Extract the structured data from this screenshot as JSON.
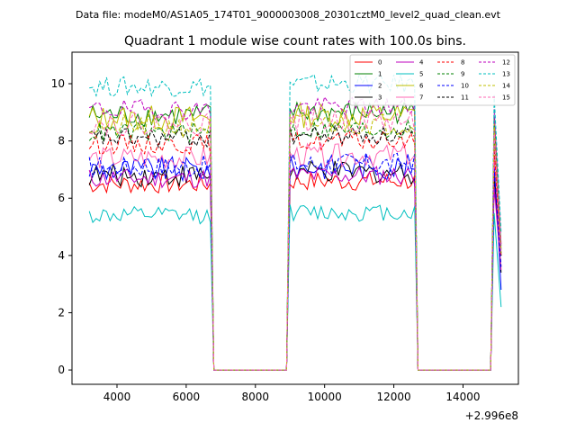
{
  "suptitle": "Data file: modeM0/AS1A05_174T01_9000003008_20301cztM0_level2_quad_clean.evt",
  "chart_data": {
    "type": "line",
    "title": "Quadrant 1 module wise count rates with 100.0s bins.",
    "xlabel": "",
    "ylabel": "",
    "x_offset_label": "+2.996e8",
    "xlim": [
      2700,
      15600
    ],
    "ylim": [
      -0.5,
      11.1
    ],
    "xticks": [
      4000,
      6000,
      8000,
      10000,
      12000,
      14000
    ],
    "yticks": [
      0,
      2,
      4,
      6,
      8,
      10
    ],
    "segments": [
      [
        3200,
        6700
      ],
      [
        9000,
        12600
      ],
      [
        14900,
        15100
      ]
    ],
    "gap_edges": [
      [
        6800,
        8900
      ],
      [
        12700,
        14800
      ]
    ],
    "x_step": 100,
    "legend_location": "upper-right",
    "legend_columns": 4,
    "series": [
      {
        "name": "0",
        "color": "#ff0000",
        "dash": "solid",
        "level": 6.5,
        "amp": 0.35,
        "end": 3.6
      },
      {
        "name": "1",
        "color": "#008000",
        "dash": "solid",
        "level": 8.9,
        "amp": 0.4,
        "end": 4.2
      },
      {
        "name": "2",
        "color": "#0000ff",
        "dash": "solid",
        "level": 7.0,
        "amp": 0.45,
        "end": 2.8
      },
      {
        "name": "3",
        "color": "#000000",
        "dash": "solid",
        "level": 6.8,
        "amp": 0.4,
        "end": 3.4
      },
      {
        "name": "4",
        "color": "#bf00bf",
        "dash": "solid",
        "level": 6.7,
        "amp": 0.35,
        "end": 3.5
      },
      {
        "name": "5",
        "color": "#00bfbf",
        "dash": "solid",
        "level": 5.4,
        "amp": 0.3,
        "end": 2.2
      },
      {
        "name": "6",
        "color": "#bfbf00",
        "dash": "solid",
        "level": 8.8,
        "amp": 0.45,
        "end": 4.0
      },
      {
        "name": "7",
        "color": "#ff69b4",
        "dash": "solid",
        "level": 7.4,
        "amp": 0.4,
        "end": 3.5
      },
      {
        "name": "8",
        "color": "#ff0000",
        "dash": "dashed",
        "level": 7.9,
        "amp": 0.35,
        "end": 4.0
      },
      {
        "name": "9",
        "color": "#008000",
        "dash": "dashed",
        "level": 8.3,
        "amp": 0.35,
        "end": 4.3
      },
      {
        "name": "10",
        "color": "#0000ff",
        "dash": "dashed",
        "level": 7.1,
        "amp": 0.4,
        "end": 3.6
      },
      {
        "name": "11",
        "color": "#000000",
        "dash": "dashed",
        "level": 8.1,
        "amp": 0.35,
        "end": 4.0
      },
      {
        "name": "12",
        "color": "#bf00bf",
        "dash": "dashed",
        "level": 9.1,
        "amp": 0.35,
        "end": 4.4
      },
      {
        "name": "13",
        "color": "#00bfbf",
        "dash": "dashed",
        "level": 9.9,
        "amp": 0.35,
        "end": 4.8
      },
      {
        "name": "14",
        "color": "#bfbf00",
        "dash": "dashed",
        "level": 8.5,
        "amp": 0.4,
        "end": 4.1
      },
      {
        "name": "15",
        "color": "#ff69b4",
        "dash": "dashed",
        "level": 8.6,
        "amp": 0.4,
        "end": 4.1
      }
    ]
  }
}
